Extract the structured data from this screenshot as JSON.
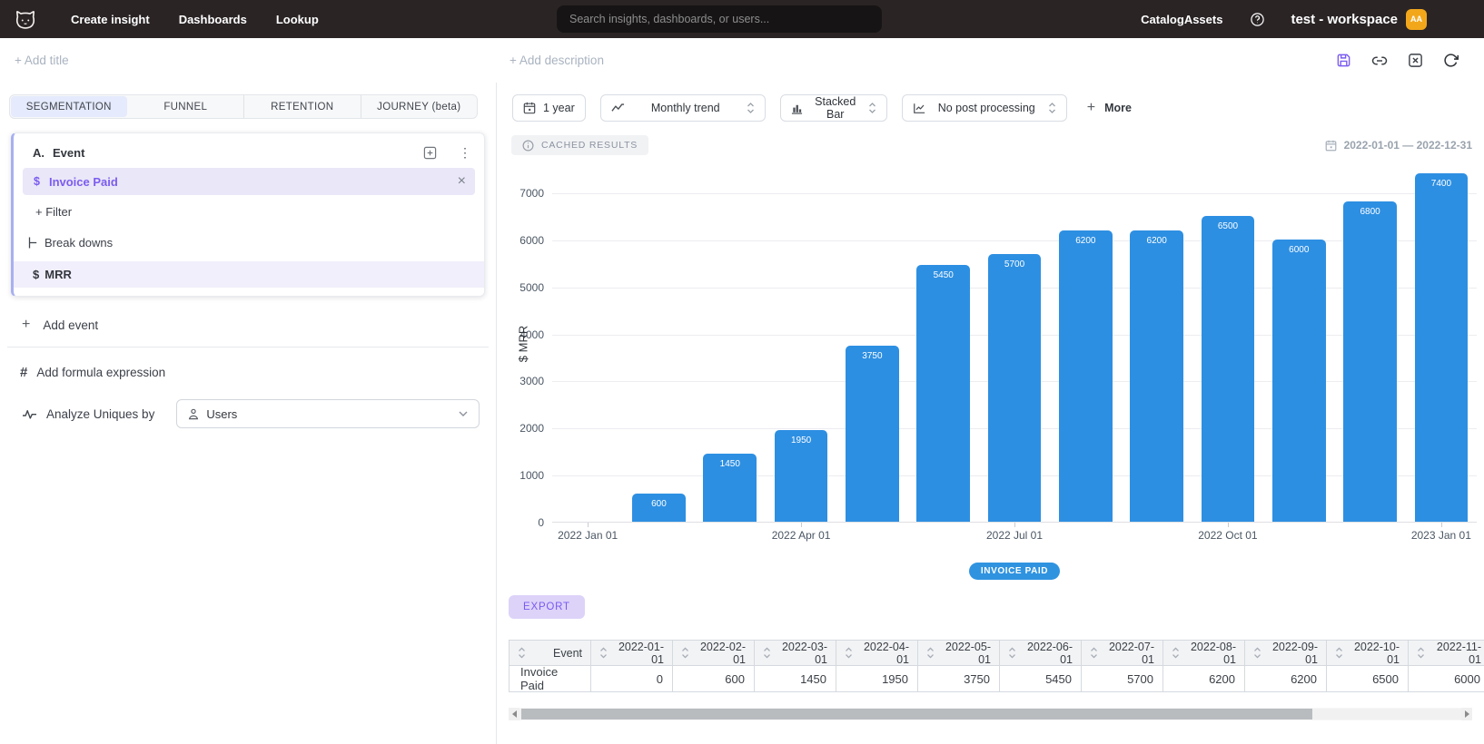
{
  "colors": {
    "accent_purple": "#7b5cf0",
    "bar_blue": "#2d8fe2",
    "legend_blue": "#2f93e0",
    "avatar_orange": "#f2a71b",
    "topbar_bg": "#2a2425"
  },
  "icons": {
    "plus": "+",
    "kebab": "⋮",
    "close": "×",
    "hash": "#",
    "dollar": "$"
  },
  "topbar": {
    "nav": [
      {
        "label": "Create insight"
      },
      {
        "label": "Dashboards"
      },
      {
        "label": "Lookup"
      }
    ],
    "search_placeholder": "Search insights, dashboards, or users...",
    "right_nav": [
      {
        "label": "Catalog"
      },
      {
        "label": "Assets"
      }
    ],
    "workspace_name": "test - workspace",
    "avatar_initials": "AA"
  },
  "titlebar": {
    "add_title": "+ Add title",
    "add_description": "+ Add description"
  },
  "left_panel": {
    "tabs": [
      {
        "label": "SEGMENTATION",
        "active": true
      },
      {
        "label": "FUNNEL",
        "active": false
      },
      {
        "label": "RETENTION",
        "active": false
      },
      {
        "label": "JOURNEY (beta)",
        "active": false
      }
    ],
    "event_group": {
      "prefix": "A.",
      "title": "Event",
      "event_icon": "$",
      "event_name": "Invoice Paid",
      "add_filter": "+ Filter",
      "breakdowns_label": "Break downs",
      "breakdown_icon": "$",
      "breakdown_name": "MRR"
    },
    "add_event": "Add event",
    "add_formula": "Add formula expression",
    "analyze_label": "Analyze Uniques by",
    "analyze_value": "Users"
  },
  "toolbar": {
    "date_preset": "1 year",
    "trend": "Monthly trend",
    "chart_type": "Stacked Bar",
    "post_processing": "No post processing",
    "more": "More"
  },
  "results": {
    "cached_badge": "CACHED RESULTS",
    "date_range": "2022-01-01 — 2022-12-31",
    "export": "EXPORT"
  },
  "chart_data": {
    "type": "bar",
    "title": "",
    "ylabel": "$ MRR",
    "series_name": "INVOICE PAID",
    "bar_color": "#2d8fe2",
    "ylim": [
      0,
      7600
    ],
    "yticks": [
      0,
      1000,
      2000,
      3000,
      4000,
      5000,
      6000,
      7000
    ],
    "grid": "horizontal",
    "legend_position": "bottom",
    "x": [
      "2022-01-01",
      "2022-02-01",
      "2022-03-01",
      "2022-04-01",
      "2022-05-01",
      "2022-06-01",
      "2022-07-01",
      "2022-08-01",
      "2022-09-01",
      "2022-10-01",
      "2022-11-01",
      "2022-12-01",
      "2023-01-01"
    ],
    "values": [
      0,
      600,
      1450,
      1950,
      3750,
      5450,
      5700,
      6200,
      6200,
      6500,
      6000,
      6800,
      7400
    ],
    "xtick_labels": [
      {
        "index": 0,
        "label": "2022 Jan 01"
      },
      {
        "index": 3,
        "label": "2022 Apr 01"
      },
      {
        "index": 6,
        "label": "2022 Jul 01"
      },
      {
        "index": 9,
        "label": "2022 Oct 01"
      },
      {
        "index": 12,
        "label": "2023 Jan 01"
      }
    ]
  },
  "table": {
    "columns": [
      "Event",
      "2022-01-01",
      "2022-02-01",
      "2022-03-01",
      "2022-04-01",
      "2022-05-01",
      "2022-06-01",
      "2022-07-01",
      "2022-08-01",
      "2022-09-01",
      "2022-10-01",
      "2022-11-01"
    ],
    "rows": [
      {
        "event": "Invoice Paid",
        "values": [
          "0",
          "600",
          "1450",
          "1950",
          "3750",
          "5450",
          "5700",
          "6200",
          "6200",
          "6500",
          "6000"
        ]
      }
    ]
  }
}
